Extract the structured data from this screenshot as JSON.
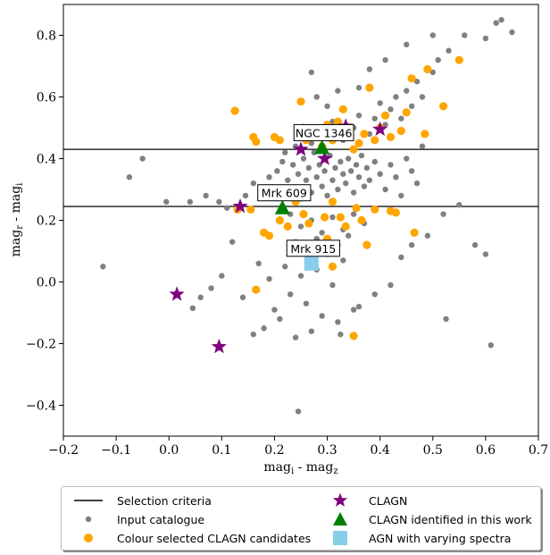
{
  "chart_data": {
    "type": "scatter",
    "xlabel": "mag_i - mag_z",
    "ylabel": "mag_r - mag_i",
    "xlim": [
      -0.2,
      0.7
    ],
    "ylim": [
      -0.5,
      0.9
    ],
    "x_ticks": [
      "−0.2",
      "−0.1",
      "0.0",
      "0.1",
      "0.2",
      "0.3",
      "0.4",
      "0.5",
      "0.6",
      "0.7"
    ],
    "y_ticks": [
      "−0.4",
      "−0.2",
      "0.0",
      "0.2",
      "0.4",
      "0.6",
      "0.8"
    ],
    "selection_lines_y": [
      0.43,
      0.245
    ],
    "colors": {
      "input": "#808080",
      "candidates": "#FFA500",
      "clagn": "#800080",
      "identified": "#008000",
      "varying": "#87CEEB"
    },
    "annotations": [
      {
        "text": "NGC 1346",
        "x": 0.29,
        "y": 0.435
      },
      {
        "text": "Mrk 609",
        "x": 0.215,
        "y": 0.24
      },
      {
        "text": "Mrk 915",
        "x": 0.27,
        "y": 0.06
      }
    ],
    "series": [
      {
        "name": "Input catalogue",
        "marker": "dot",
        "points": [
          [
            -0.125,
            0.05
          ],
          [
            -0.075,
            0.34
          ],
          [
            -0.05,
            0.4
          ],
          [
            -0.005,
            0.26
          ],
          [
            0.04,
            0.26
          ],
          [
            0.07,
            0.28
          ],
          [
            0.095,
            0.26
          ],
          [
            0.11,
            0.24
          ],
          [
            0.145,
            0.28
          ],
          [
            0.16,
            0.32
          ],
          [
            0.18,
            0.3
          ],
          [
            0.19,
            0.34
          ],
          [
            0.205,
            0.36
          ],
          [
            0.215,
            0.39
          ],
          [
            0.225,
            0.33
          ],
          [
            0.235,
            0.38
          ],
          [
            0.24,
            0.3
          ],
          [
            0.245,
            0.35
          ],
          [
            0.25,
            0.27
          ],
          [
            0.255,
            0.4
          ],
          [
            0.26,
            0.33
          ],
          [
            0.265,
            0.37
          ],
          [
            0.27,
            0.29
          ],
          [
            0.275,
            0.42
          ],
          [
            0.28,
            0.34
          ],
          [
            0.285,
            0.38
          ],
          [
            0.29,
            0.31
          ],
          [
            0.295,
            0.36
          ],
          [
            0.3,
            0.28
          ],
          [
            0.305,
            0.41
          ],
          [
            0.31,
            0.33
          ],
          [
            0.315,
            0.37
          ],
          [
            0.32,
            0.3
          ],
          [
            0.325,
            0.39
          ],
          [
            0.33,
            0.35
          ],
          [
            0.335,
            0.32
          ],
          [
            0.34,
            0.4
          ],
          [
            0.345,
            0.36
          ],
          [
            0.35,
            0.29
          ],
          [
            0.355,
            0.38
          ],
          [
            0.36,
            0.34
          ],
          [
            0.365,
            0.41
          ],
          [
            0.37,
            0.31
          ],
          [
            0.375,
            0.37
          ],
          [
            0.38,
            0.33
          ],
          [
            0.39,
            0.39
          ],
          [
            0.4,
            0.35
          ],
          [
            0.41,
            0.3
          ],
          [
            0.42,
            0.38
          ],
          [
            0.43,
            0.34
          ],
          [
            0.44,
            0.28
          ],
          [
            0.45,
            0.4
          ],
          [
            0.46,
            0.36
          ],
          [
            0.47,
            0.32
          ],
          [
            0.48,
            0.44
          ],
          [
            0.22,
            0.42
          ],
          [
            0.24,
            0.44
          ],
          [
            0.26,
            0.47
          ],
          [
            0.27,
            0.45
          ],
          [
            0.28,
            0.5
          ],
          [
            0.3,
            0.48
          ],
          [
            0.31,
            0.52
          ],
          [
            0.33,
            0.46
          ],
          [
            0.35,
            0.5
          ],
          [
            0.36,
            0.54
          ],
          [
            0.38,
            0.48
          ],
          [
            0.39,
            0.53
          ],
          [
            0.4,
            0.58
          ],
          [
            0.41,
            0.51
          ],
          [
            0.42,
            0.56
          ],
          [
            0.43,
            0.6
          ],
          [
            0.44,
            0.53
          ],
          [
            0.45,
            0.62
          ],
          [
            0.46,
            0.57
          ],
          [
            0.47,
            0.65
          ],
          [
            0.48,
            0.6
          ],
          [
            0.5,
            0.68
          ],
          [
            0.51,
            0.72
          ],
          [
            0.53,
            0.75
          ],
          [
            0.56,
            0.8
          ],
          [
            0.6,
            0.79
          ],
          [
            0.62,
            0.84
          ],
          [
            0.63,
            0.85
          ],
          [
            0.65,
            0.81
          ],
          [
            0.5,
            0.8
          ],
          [
            0.45,
            0.77
          ],
          [
            0.27,
            0.68
          ],
          [
            0.28,
            0.6
          ],
          [
            0.3,
            0.57
          ],
          [
            0.32,
            0.62
          ],
          [
            0.23,
            0.22
          ],
          [
            0.25,
            0.18
          ],
          [
            0.27,
            0.2
          ],
          [
            0.29,
            0.16
          ],
          [
            0.31,
            0.21
          ],
          [
            0.33,
            0.17
          ],
          [
            0.35,
            0.22
          ],
          [
            0.37,
            0.19
          ],
          [
            0.24,
            0.13
          ],
          [
            0.26,
            0.1
          ],
          [
            0.28,
            0.14
          ],
          [
            0.3,
            0.09
          ],
          [
            0.32,
            0.12
          ],
          [
            0.34,
            0.15
          ],
          [
            0.22,
            0.05
          ],
          [
            0.25,
            0.02
          ],
          [
            0.28,
            0.04
          ],
          [
            0.31,
            -0.01
          ],
          [
            0.33,
            0.07
          ],
          [
            0.23,
            -0.04
          ],
          [
            0.26,
            -0.07
          ],
          [
            0.29,
            -0.11
          ],
          [
            0.32,
            -0.13
          ],
          [
            0.35,
            -0.09
          ],
          [
            0.2,
            -0.09
          ],
          [
            0.18,
            -0.15
          ],
          [
            0.16,
            -0.17
          ],
          [
            0.14,
            -0.05
          ],
          [
            0.12,
            0.13
          ],
          [
            0.1,
            0.02
          ],
          [
            0.08,
            -0.02
          ],
          [
            0.06,
            -0.05
          ],
          [
            0.045,
            -0.085
          ],
          [
            0.17,
            0.06
          ],
          [
            0.19,
            0.01
          ],
          [
            0.21,
            -0.12
          ],
          [
            0.24,
            -0.18
          ],
          [
            0.27,
            -0.16
          ],
          [
            0.325,
            -0.17
          ],
          [
            0.36,
            -0.08
          ],
          [
            0.39,
            -0.04
          ],
          [
            0.42,
            -0.01
          ],
          [
            0.44,
            0.08
          ],
          [
            0.46,
            0.12
          ],
          [
            0.49,
            0.15
          ],
          [
            0.52,
            0.22
          ],
          [
            0.55,
            0.25
          ],
          [
            0.58,
            0.12
          ],
          [
            0.6,
            0.09
          ],
          [
            0.61,
            -0.205
          ],
          [
            0.525,
            -0.12
          ],
          [
            0.245,
            -0.42
          ],
          [
            0.41,
            0.72
          ],
          [
            0.38,
            0.69
          ],
          [
            0.36,
            0.63
          ]
        ]
      },
      {
        "name": "Colour selected CLAGN candidates",
        "marker": "circle",
        "points": [
          [
            0.125,
            0.555
          ],
          [
            0.16,
            0.47
          ],
          [
            0.165,
            0.455
          ],
          [
            0.2,
            0.47
          ],
          [
            0.21,
            0.46
          ],
          [
            0.25,
            0.585
          ],
          [
            0.255,
            0.5
          ],
          [
            0.26,
            0.46
          ],
          [
            0.29,
            0.44
          ],
          [
            0.3,
            0.51
          ],
          [
            0.31,
            0.46
          ],
          [
            0.32,
            0.52
          ],
          [
            0.33,
            0.56
          ],
          [
            0.35,
            0.43
          ],
          [
            0.36,
            0.45
          ],
          [
            0.37,
            0.48
          ],
          [
            0.38,
            0.63
          ],
          [
            0.39,
            0.46
          ],
          [
            0.4,
            0.5
          ],
          [
            0.41,
            0.54
          ],
          [
            0.42,
            0.47
          ],
          [
            0.44,
            0.49
          ],
          [
            0.45,
            0.55
          ],
          [
            0.46,
            0.66
          ],
          [
            0.49,
            0.69
          ],
          [
            0.52,
            0.57
          ],
          [
            0.55,
            0.72
          ],
          [
            0.485,
            0.48
          ],
          [
            0.13,
            0.235
          ],
          [
            0.155,
            0.235
          ],
          [
            0.18,
            0.16
          ],
          [
            0.19,
            0.15
          ],
          [
            0.21,
            0.2
          ],
          [
            0.225,
            0.18
          ],
          [
            0.24,
            0.26
          ],
          [
            0.255,
            0.22
          ],
          [
            0.265,
            0.19
          ],
          [
            0.295,
            0.21
          ],
          [
            0.3,
            0.14
          ],
          [
            0.31,
            0.26
          ],
          [
            0.325,
            0.21
          ],
          [
            0.335,
            0.18
          ],
          [
            0.355,
            0.24
          ],
          [
            0.365,
            0.2
          ],
          [
            0.375,
            0.12
          ],
          [
            0.39,
            0.235
          ],
          [
            0.42,
            0.23
          ],
          [
            0.43,
            0.225
          ],
          [
            0.465,
            0.16
          ],
          [
            0.31,
            0.05
          ],
          [
            0.165,
            -0.025
          ],
          [
            0.35,
            -0.175
          ],
          [
            0.27,
            0.12
          ]
        ]
      },
      {
        "name": "CLAGN",
        "marker": "star",
        "points": [
          [
            0.015,
            -0.04
          ],
          [
            0.095,
            -0.21
          ],
          [
            0.135,
            0.245
          ],
          [
            0.25,
            0.43
          ],
          [
            0.295,
            0.4
          ],
          [
            0.335,
            0.505
          ],
          [
            0.4,
            0.495
          ]
        ]
      },
      {
        "name": "CLAGN identified in this work",
        "marker": "triangle",
        "points": [
          [
            0.215,
            0.24
          ],
          [
            0.29,
            0.435
          ]
        ]
      },
      {
        "name": "AGN with varying spectra",
        "marker": "square",
        "points": [
          [
            0.27,
            0.06
          ]
        ]
      }
    ]
  },
  "legend": {
    "items": [
      {
        "label": "Selection criteria",
        "symbol": "line"
      },
      {
        "label": "Input catalogue",
        "symbol": "dot"
      },
      {
        "label": "Colour selected CLAGN candidates",
        "symbol": "circle"
      },
      {
        "label": "CLAGN",
        "symbol": "star"
      },
      {
        "label": "CLAGN identified in this work",
        "symbol": "triangle"
      },
      {
        "label": "AGN with varying spectra",
        "symbol": "square"
      }
    ]
  }
}
